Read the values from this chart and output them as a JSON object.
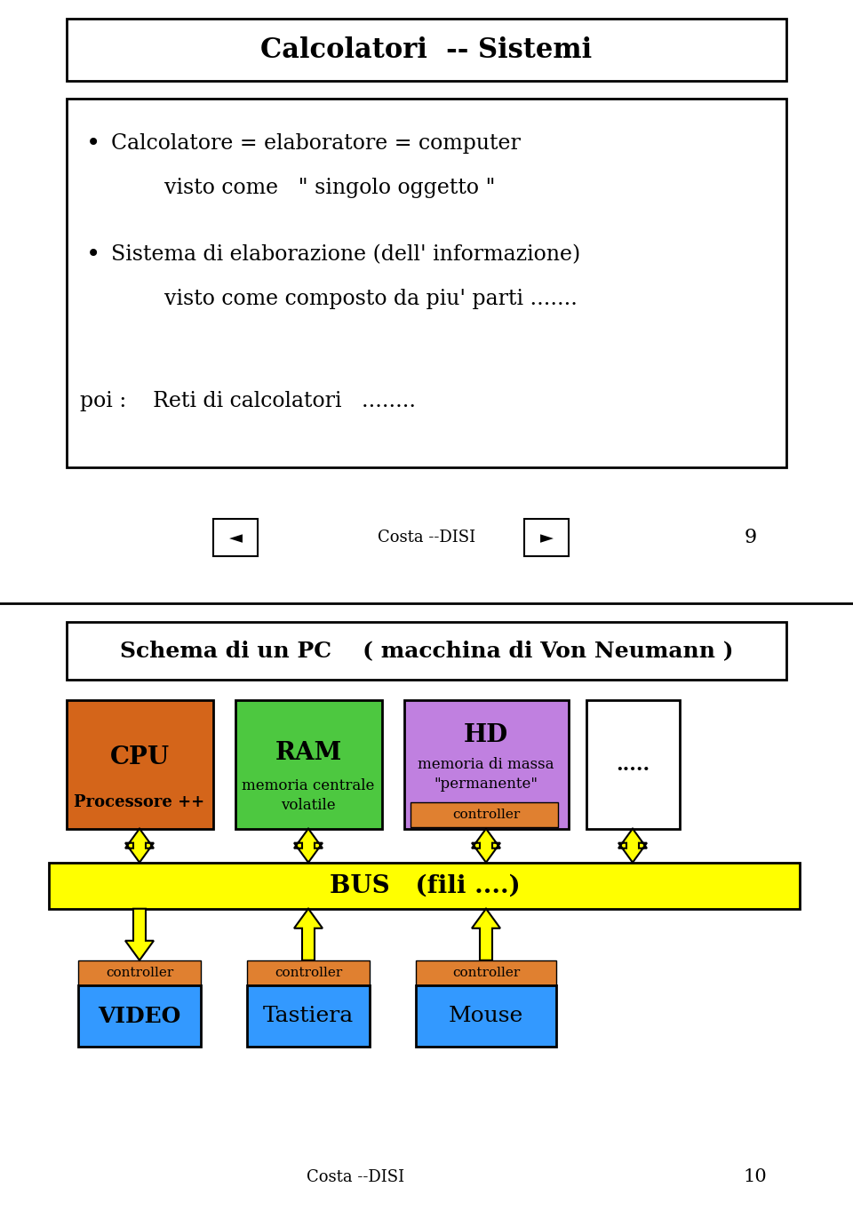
{
  "slide1": {
    "title": "Calcolatori  -- Sistemi",
    "bullet1_line1": "Calcolatore = elaboratore = computer",
    "bullet1_line2": "visto come   \" singolo oggetto \"",
    "bullet2_line1": "Sistema di elaborazione (dell' informazione)",
    "bullet2_line2": "visto come composto da piu' parti .......",
    "poi_text": "poi :    Reti di calcolatori   ........",
    "footer_text": "Costa --DISI",
    "page_num": "9"
  },
  "slide2": {
    "title": "Schema di un PC    ( macchina di Von Neumann )",
    "cpu_label": "CPU",
    "cpu_sub": "Processore ++",
    "cpu_color": "#D4651A",
    "ram_label": "RAM",
    "ram_sub1": "memoria centrale",
    "ram_sub2": "volatile",
    "ram_color": "#4DC840",
    "hd_label": "HD",
    "hd_sub1": "memoria di massa",
    "hd_sub2": "\"permanente\"",
    "hd_color": "#C080E0",
    "hd_ctrl": "controller",
    "hd_ctrl_color": "#E08030",
    "dots_label": ".....",
    "dots_color": "#FFFFFF",
    "bus_label": "BUS   (fili ....)",
    "bus_color": "#FFFF00",
    "video_ctrl": "controller",
    "video_ctrl_color": "#E08030",
    "video_label": "VIDEO",
    "video_color": "#3399FF",
    "tastiera_ctrl": "controller",
    "tastiera_ctrl_color": "#E08030",
    "tastiera_label": "Tastiera",
    "tastiera_color": "#3399FF",
    "mouse_ctrl": "controller",
    "mouse_ctrl_color": "#E08030",
    "mouse_label": "Mouse",
    "mouse_color": "#3399FF",
    "arrow_color": "#FFFF00",
    "footer_text": "Costa --DISI",
    "page_num": "10"
  }
}
